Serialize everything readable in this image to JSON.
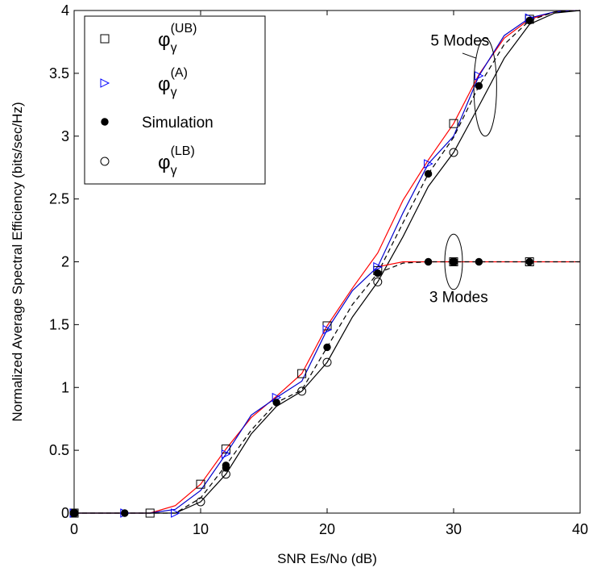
{
  "chart_data": {
    "type": "line",
    "title": "",
    "xlabel": "SNR Es/No (dB)",
    "ylabel": "Normalized Average Spectral Efficiency (bits/sec/Hz)",
    "xlim": [
      0,
      40
    ],
    "ylim": [
      0,
      4
    ],
    "xticks": [
      0,
      10,
      20,
      30,
      40
    ],
    "yticks": [
      0,
      0.5,
      1,
      1.5,
      2,
      2.5,
      3,
      3.5,
      4
    ],
    "xtick_labels": [
      "0",
      "10",
      "20",
      "30",
      "40"
    ],
    "ytick_labels": [
      "0",
      "0.5",
      "1",
      "1.5",
      "2",
      "2.5",
      "3",
      "3.5",
      "4"
    ],
    "grid": false,
    "legend_position": "top-left",
    "legend": [
      {
        "symbol": "square",
        "label_base": "φ",
        "label_sub": "γ",
        "label_sup": "(UB)"
      },
      {
        "symbol": "triangle-right",
        "label_base": "φ",
        "label_sub": "γ",
        "label_sup": "(A)"
      },
      {
        "symbol": "filled-circle",
        "label_base": "Simulation",
        "label_sub": "",
        "label_sup": ""
      },
      {
        "symbol": "circle",
        "label_base": "φ",
        "label_sub": "γ",
        "label_sup": "(LB)"
      }
    ],
    "annotations": [
      {
        "text": "5 Modes",
        "x": 30.5,
        "y": 3.72
      },
      {
        "text": "3 Modes",
        "x": 30.4,
        "y": 1.68
      }
    ],
    "ellipses": [
      {
        "cx": 32.5,
        "cy": 3.39,
        "rx": 0.9,
        "ry": 0.39
      },
      {
        "cx": 30.0,
        "cy": 2.0,
        "rx": 0.7,
        "ry": 0.22
      }
    ],
    "pointer_lines": [
      {
        "x1": 31.8,
        "y1": 3.62,
        "x2": 30.7,
        "y2": 3.66
      }
    ],
    "series": [
      {
        "key": "ub_line_5",
        "color": "#ff0000",
        "dash": "",
        "x": [
          0,
          6,
          8,
          10,
          12,
          14,
          16,
          18,
          20,
          22,
          24,
          26,
          28,
          30,
          32,
          34,
          36,
          38,
          40
        ],
        "y": [
          0,
          0,
          0.06,
          0.23,
          0.51,
          0.76,
          0.93,
          1.11,
          1.49,
          1.79,
          2.07,
          2.49,
          2.81,
          3.1,
          3.49,
          3.78,
          3.93,
          3.99,
          4.0
        ]
      },
      {
        "key": "a_line_5",
        "color": "#0000cc",
        "dash": "",
        "x": [
          0,
          6,
          8,
          10,
          12,
          14,
          16,
          18,
          20,
          22,
          24,
          26,
          28,
          30,
          32,
          34,
          36,
          38,
          40
        ],
        "y": [
          0,
          0,
          0.03,
          0.18,
          0.47,
          0.78,
          0.92,
          1.05,
          1.46,
          1.77,
          1.96,
          2.39,
          2.78,
          3.0,
          3.48,
          3.8,
          3.94,
          3.99,
          4.0
        ]
      },
      {
        "key": "sim_line_5",
        "color": "#000000",
        "dash": "6,4",
        "x": [
          0,
          6,
          8,
          10,
          12,
          14,
          16,
          18,
          20,
          22,
          24,
          26,
          28,
          30,
          32,
          34,
          36,
          38,
          40
        ],
        "y": [
          0,
          0,
          0,
          0.12,
          0.38,
          0.66,
          0.88,
          0.98,
          1.32,
          1.66,
          1.91,
          2.31,
          2.7,
          2.99,
          3.4,
          3.73,
          3.92,
          3.99,
          4.0
        ]
      },
      {
        "key": "lb_line_5",
        "color": "#000000",
        "dash": "",
        "x": [
          0,
          6,
          8,
          10,
          12,
          14,
          16,
          18,
          20,
          22,
          24,
          26,
          28,
          30,
          32,
          34,
          36,
          38,
          40
        ],
        "y": [
          0,
          0,
          0,
          0.09,
          0.31,
          0.63,
          0.85,
          0.97,
          1.2,
          1.56,
          1.84,
          2.2,
          2.6,
          2.87,
          3.24,
          3.62,
          3.89,
          3.98,
          4.0
        ]
      },
      {
        "key": "ub_line_3",
        "color": "#ff0000",
        "dash": "",
        "x": [
          24,
          26,
          28,
          30,
          32,
          34,
          36,
          38,
          40
        ],
        "y": [
          1.96,
          2.0,
          2.0,
          2.0,
          2.0,
          2.0,
          2.0,
          2.0,
          2.0
        ]
      },
      {
        "key": "lb_line_3",
        "color": "#000000",
        "dash": "6,4",
        "x": [
          24,
          26,
          28,
          30,
          32,
          34,
          36,
          38,
          40
        ],
        "y": [
          1.91,
          1.99,
          2.0,
          2.0,
          2.0,
          2.0,
          2.0,
          2.0,
          2.0
        ]
      }
    ],
    "markers": {
      "ub": {
        "symbol": "square",
        "color": "#000000",
        "points": [
          [
            0,
            0
          ],
          [
            6,
            0
          ],
          [
            10,
            0.23
          ],
          [
            12,
            0.51
          ],
          [
            18,
            1.11
          ],
          [
            20,
            1.49
          ],
          [
            24,
            1.93
          ],
          [
            30,
            2.0
          ],
          [
            36,
            2.0
          ],
          [
            30,
            3.1
          ],
          [
            36,
            3.93
          ]
        ]
      },
      "a": {
        "symbol": "triangle-right",
        "color": "#0000ff",
        "points": [
          [
            0,
            0
          ],
          [
            4,
            0
          ],
          [
            8,
            0
          ],
          [
            12,
            0.47
          ],
          [
            16,
            0.92
          ],
          [
            20,
            1.46
          ],
          [
            24,
            1.96
          ],
          [
            28,
            2.78
          ],
          [
            32,
            3.48
          ],
          [
            36,
            3.94
          ]
        ]
      },
      "sim": {
        "symbol": "filled-circle",
        "color": "#000000",
        "points": [
          [
            0,
            0
          ],
          [
            4,
            0
          ],
          [
            12,
            0.38
          ],
          [
            12,
            0.36
          ],
          [
            16,
            0.88
          ],
          [
            20,
            1.32
          ],
          [
            24,
            1.91
          ],
          [
            28,
            2.0
          ],
          [
            30,
            2.0
          ],
          [
            32,
            2.0
          ],
          [
            36,
            2.0
          ],
          [
            28,
            2.7
          ],
          [
            32,
            3.4
          ],
          [
            36,
            3.92
          ]
        ]
      },
      "lb": {
        "symbol": "circle",
        "color": "#000000",
        "points": [
          [
            0,
            0
          ],
          [
            10,
            0.09
          ],
          [
            12,
            0.31
          ],
          [
            18,
            0.97
          ],
          [
            20,
            1.2
          ],
          [
            24,
            1.84
          ],
          [
            30,
            2.0
          ],
          [
            30,
            2.87
          ]
        ]
      }
    }
  }
}
